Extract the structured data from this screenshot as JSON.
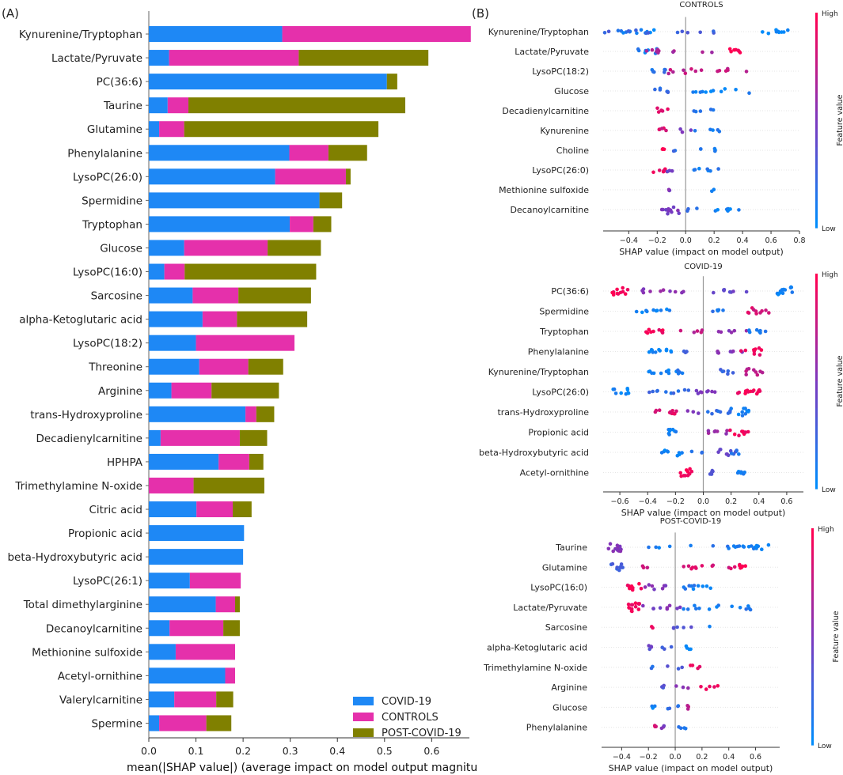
{
  "figure": {
    "panel_a_label": "(A)",
    "panel_b_label": "(B)"
  },
  "colors": {
    "covid": "#1E88F5",
    "controls": "#E530AB",
    "post": "#808000",
    "axis": "#333333",
    "zero": "#999999",
    "high": "#FF0052",
    "low": "#008BFB"
  },
  "chart_data": [
    {
      "type": "bar",
      "stacked": true,
      "orientation": "horizontal",
      "panel": "A",
      "xlabel": "mean(|SHAP value|) (average impact on model output magnitu",
      "xlim": [
        0,
        0.68
      ],
      "xticks": [
        "0.0",
        "0.1",
        "0.2",
        "0.3",
        "0.4",
        "0.5",
        "0.6"
      ],
      "legend": "bottom-right",
      "categories": [
        "Kynurenine/Tryptophan",
        "Lactate/Pyruvate",
        "PC(36:6)",
        "Taurine",
        "Glutamine",
        "Phenylalanine",
        "LysoPC(26:0)",
        "Spermidine",
        "Tryptophan",
        "Glucose",
        "LysoPC(16:0)",
        "Sarcosine",
        "alpha-Ketoglutaric acid",
        "LysoPC(18:2)",
        "Threonine",
        "Arginine",
        "trans-Hydroxyproline",
        "Decadienylcarnitine",
        "HPHPA",
        "Trimethylamine N-oxide",
        "Citric acid",
        "Propionic acid",
        "beta-Hydroxybutyric acid",
        "LysoPC(26:1)",
        "Total dimethylarginine",
        "Decanoylcarnitine",
        "Methionine sulfoxide",
        "Acetyl-ornithine",
        "Valerylcarnitine",
        "Spermine"
      ],
      "series": [
        {
          "name": "COVID-19",
          "values": [
            0.283,
            0.043,
            0.505,
            0.04,
            0.022,
            0.298,
            0.268,
            0.362,
            0.299,
            0.075,
            0.033,
            0.093,
            0.114,
            0.1,
            0.107,
            0.048,
            0.205,
            0.025,
            0.148,
            0.0,
            0.101,
            0.202,
            0.2,
            0.087,
            0.142,
            0.044,
            0.057,
            0.162,
            0.054,
            0.022
          ]
        },
        {
          "name": "CONTROLS",
          "values": [
            0.4,
            0.275,
            0.0,
            0.044,
            0.053,
            0.083,
            0.15,
            0.0,
            0.05,
            0.177,
            0.043,
            0.097,
            0.073,
            0.209,
            0.104,
            0.085,
            0.023,
            0.168,
            0.065,
            0.095,
            0.077,
            0.0,
            0.0,
            0.108,
            0.041,
            0.114,
            0.126,
            0.021,
            0.089,
            0.1
          ]
        },
        {
          "name": "POST-COVID-19",
          "values": [
            0.0,
            0.275,
            0.022,
            0.46,
            0.412,
            0.082,
            0.01,
            0.048,
            0.038,
            0.113,
            0.279,
            0.154,
            0.149,
            0.0,
            0.074,
            0.143,
            0.038,
            0.058,
            0.03,
            0.15,
            0.04,
            0.0,
            0.0,
            0.0,
            0.01,
            0.035,
            0.0,
            0.0,
            0.036,
            0.053
          ]
        }
      ]
    },
    {
      "type": "scatter",
      "subtype": "shap-beeswarm",
      "panel": "B",
      "title": "CONTROLS",
      "xlabel": "SHAP value (impact on model output)",
      "xlim": [
        -0.58,
        0.8
      ],
      "xticks": [
        -0.4,
        -0.2,
        0.0,
        0.2,
        0.4,
        0.6,
        0.8
      ],
      "colorbar": {
        "label": "Feature value",
        "high": "High",
        "low": "Low"
      },
      "features": [
        {
          "name": "Kynurenine/Tryptophan",
          "clusters": [
            [
              -0.38,
              0.12,
              0.1,
              9
            ],
            [
              -0.27,
              0.07,
              0.0,
              3
            ],
            [
              -0.15,
              0.45,
              0.25,
              12
            ],
            [
              0.62,
              0.1,
              0.0,
              9
            ]
          ]
        },
        {
          "name": "Lactate/Pyruvate",
          "clusters": [
            [
              -0.27,
              0.07,
              0.08,
              7
            ],
            [
              -0.03,
              0.25,
              0.65,
              10
            ],
            [
              0.35,
              0.05,
              1.0,
              7
            ]
          ]
        },
        {
          "name": "LysoPC(18:2)",
          "clusters": [
            [
              -0.19,
              0.05,
              0.15,
              6
            ],
            [
              0.15,
              0.3,
              0.75,
              14
            ]
          ]
        },
        {
          "name": "Glucose",
          "clusters": [
            [
              -0.17,
              0.05,
              0.2,
              6
            ],
            [
              0.25,
              0.2,
              0.05,
              11
            ]
          ]
        },
        {
          "name": "Decadienylcarnitine",
          "clusters": [
            [
              -0.16,
              0.04,
              0.9,
              6
            ],
            [
              0.15,
              0.1,
              0.1,
              5
            ]
          ]
        },
        {
          "name": "Kynurenine",
          "clusters": [
            [
              -0.17,
              0.05,
              0.85,
              5
            ],
            [
              0.0,
              0.05,
              0.5,
              3
            ],
            [
              0.15,
              0.1,
              0.1,
              5
            ]
          ]
        },
        {
          "name": "Choline",
          "clusters": [
            [
              -0.16,
              0.01,
              1.0,
              3
            ],
            [
              -0.08,
              0.01,
              0.2,
              2
            ],
            [
              0.1,
              0.01,
              0.1,
              2
            ],
            [
              0.2,
              0.01,
              0.05,
              3
            ]
          ]
        },
        {
          "name": "LysoPC(26:0)",
          "clusters": [
            [
              -0.18,
              0.05,
              0.9,
              6
            ],
            [
              -0.08,
              0.05,
              0.4,
              3
            ],
            [
              0.15,
              0.15,
              0.1,
              7
            ]
          ]
        },
        {
          "name": "Methionine sulfoxide",
          "clusters": [
            [
              -0.11,
              0.01,
              0.5,
              3
            ],
            [
              0.19,
              0.01,
              0.05,
              2
            ]
          ]
        },
        {
          "name": "Decanoylcarnitine",
          "clusters": [
            [
              -0.1,
              0.07,
              0.5,
              12
            ],
            [
              0.05,
              0.05,
              0.2,
              3
            ],
            [
              0.28,
              0.1,
              0.05,
              9
            ]
          ]
        }
      ]
    },
    {
      "type": "scatter",
      "subtype": "shap-beeswarm",
      "panel": "B",
      "title": "COVID-19",
      "xlabel": "SHAP value (impact on model output)",
      "xlim": [
        -0.72,
        0.72
      ],
      "xticks": [
        -0.6,
        -0.4,
        -0.2,
        0.0,
        0.2,
        0.4,
        0.6
      ],
      "colorbar": {
        "label": "Feature value",
        "high": "High",
        "low": "Low"
      },
      "features": [
        {
          "name": "PC(36:6)",
          "clusters": [
            [
              -0.6,
              0.06,
              0.95,
              12
            ],
            [
              -0.3,
              0.2,
              0.55,
              10
            ],
            [
              0.2,
              0.15,
              0.4,
              8
            ],
            [
              0.58,
              0.06,
              0.05,
              14
            ]
          ]
        },
        {
          "name": "Spermidine",
          "clusters": [
            [
              -0.35,
              0.15,
              0.05,
              10
            ],
            [
              0.15,
              0.1,
              0.15,
              5
            ],
            [
              0.4,
              0.08,
              0.85,
              10
            ]
          ]
        },
        {
          "name": "Tryptophan",
          "clusters": [
            [
              -0.35,
              0.12,
              0.95,
              10
            ],
            [
              -0.1,
              0.1,
              0.75,
              5
            ],
            [
              0.2,
              0.12,
              0.55,
              6
            ],
            [
              0.38,
              0.1,
              0.1,
              7
            ]
          ]
        },
        {
          "name": "Phenylalanine",
          "clusters": [
            [
              -0.32,
              0.1,
              0.05,
              11
            ],
            [
              -0.1,
              0.05,
              0.2,
              3
            ],
            [
              0.2,
              0.1,
              0.55,
              7
            ],
            [
              0.35,
              0.08,
              0.95,
              9
            ]
          ]
        },
        {
          "name": "Kynurenine/Tryptophan",
          "clusters": [
            [
              -0.3,
              0.1,
              0.05,
              8
            ],
            [
              -0.15,
              0.05,
              0.1,
              6
            ],
            [
              0.2,
              0.08,
              0.25,
              6
            ],
            [
              0.35,
              0.08,
              0.75,
              9
            ]
          ]
        },
        {
          "name": "LysoPC(26:0)",
          "clusters": [
            [
              -0.58,
              0.08,
              0.05,
              9
            ],
            [
              -0.25,
              0.15,
              0.2,
              10
            ],
            [
              0.05,
              0.1,
              0.5,
              8
            ],
            [
              0.33,
              0.1,
              0.95,
              15
            ]
          ]
        },
        {
          "name": "trans-Hydroxyproline",
          "clusters": [
            [
              -0.28,
              0.1,
              0.9,
              10
            ],
            [
              -0.08,
              0.05,
              0.5,
              3
            ],
            [
              0.1,
              0.1,
              0.2,
              8
            ],
            [
              0.25,
              0.08,
              0.05,
              10
            ]
          ]
        },
        {
          "name": "Propionic acid",
          "clusters": [
            [
              -0.22,
              0.03,
              0.05,
              8
            ],
            [
              0.1,
              0.1,
              0.6,
              7
            ],
            [
              0.25,
              0.08,
              0.95,
              9
            ]
          ]
        },
        {
          "name": "beta-Hydroxybutyric acid",
          "clusters": [
            [
              -0.22,
              0.08,
              0.05,
              9
            ],
            [
              -0.05,
              0.05,
              0.2,
              3
            ],
            [
              0.18,
              0.08,
              0.4,
              8
            ],
            [
              0.23,
              0.03,
              0.15,
              5
            ]
          ]
        },
        {
          "name": "Acetyl-ornithine",
          "clusters": [
            [
              -0.12,
              0.05,
              0.95,
              10
            ],
            [
              0.05,
              0.05,
              0.3,
              5
            ],
            [
              0.27,
              0.03,
              0.05,
              8
            ]
          ]
        }
      ]
    },
    {
      "type": "scatter",
      "subtype": "shap-beeswarm",
      "panel": "B",
      "title": "POST-COVID-19",
      "xlabel": "SHAP value (impact on model output)",
      "xlim": [
        -0.55,
        0.78
      ],
      "xticks": [
        -0.4,
        -0.2,
        0.0,
        0.2,
        0.4,
        0.6
      ],
      "colorbar": {
        "label": "Feature value",
        "high": "High",
        "low": "Low"
      },
      "features": [
        {
          "name": "Taurine",
          "clusters": [
            [
              -0.45,
              0.05,
              0.5,
              12
            ],
            [
              -0.1,
              0.1,
              0.1,
              4
            ],
            [
              0.3,
              0.2,
              0.1,
              8
            ],
            [
              0.6,
              0.1,
              0.05,
              12
            ]
          ]
        },
        {
          "name": "Glutamine",
          "clusters": [
            [
              -0.43,
              0.05,
              0.25,
              10
            ],
            [
              -0.2,
              0.05,
              0.8,
              3
            ],
            [
              0.25,
              0.2,
              0.85,
              12
            ],
            [
              0.5,
              0.03,
              1.0,
              6
            ]
          ]
        },
        {
          "name": "LysoPC(16:0)",
          "clusters": [
            [
              -0.3,
              0.06,
              0.95,
              10
            ],
            [
              -0.15,
              0.08,
              0.5,
              7
            ],
            [
              0.15,
              0.15,
              0.1,
              10
            ]
          ]
        },
        {
          "name": "Lactate/Pyruvate",
          "clusters": [
            [
              -0.3,
              0.05,
              0.95,
              14
            ],
            [
              -0.1,
              0.15,
              0.5,
              9
            ],
            [
              0.3,
              0.3,
              0.1,
              14
            ]
          ]
        },
        {
          "name": "Sarcosine",
          "clusters": [
            [
              -0.17,
              0.01,
              0.95,
              2
            ],
            [
              0.05,
              0.12,
              0.35,
              5
            ],
            [
              0.25,
              0.01,
              0.1,
              1
            ]
          ]
        },
        {
          "name": "alpha-Ketoglutaric acid",
          "clusters": [
            [
              -0.19,
              0.02,
              0.4,
              4
            ],
            [
              -0.05,
              0.05,
              0.3,
              3
            ],
            [
              0.1,
              0.02,
              0.05,
              4
            ]
          ]
        },
        {
          "name": "Trimethylamine N-oxide",
          "clusters": [
            [
              -0.17,
              0.01,
              0.15,
              2
            ],
            [
              0.0,
              0.06,
              0.3,
              3
            ],
            [
              0.15,
              0.05,
              0.95,
              4
            ]
          ]
        },
        {
          "name": "Arginine",
          "clusters": [
            [
              -0.1,
              0.02,
              0.3,
              3
            ],
            [
              0.05,
              0.05,
              0.6,
              3
            ],
            [
              0.25,
              0.08,
              0.95,
              5
            ]
          ]
        },
        {
          "name": "Glucose",
          "clusters": [
            [
              -0.17,
              0.02,
              0.05,
              3
            ],
            [
              0.0,
              0.06,
              0.2,
              4
            ],
            [
              0.1,
              0.01,
              0.75,
              3
            ]
          ]
        },
        {
          "name": "Phenylalanine",
          "clusters": [
            [
              -0.15,
              0.01,
              0.85,
              3
            ],
            [
              -0.1,
              0.02,
              0.5,
              3
            ],
            [
              0.05,
              0.03,
              0.1,
              4
            ]
          ]
        }
      ]
    }
  ]
}
